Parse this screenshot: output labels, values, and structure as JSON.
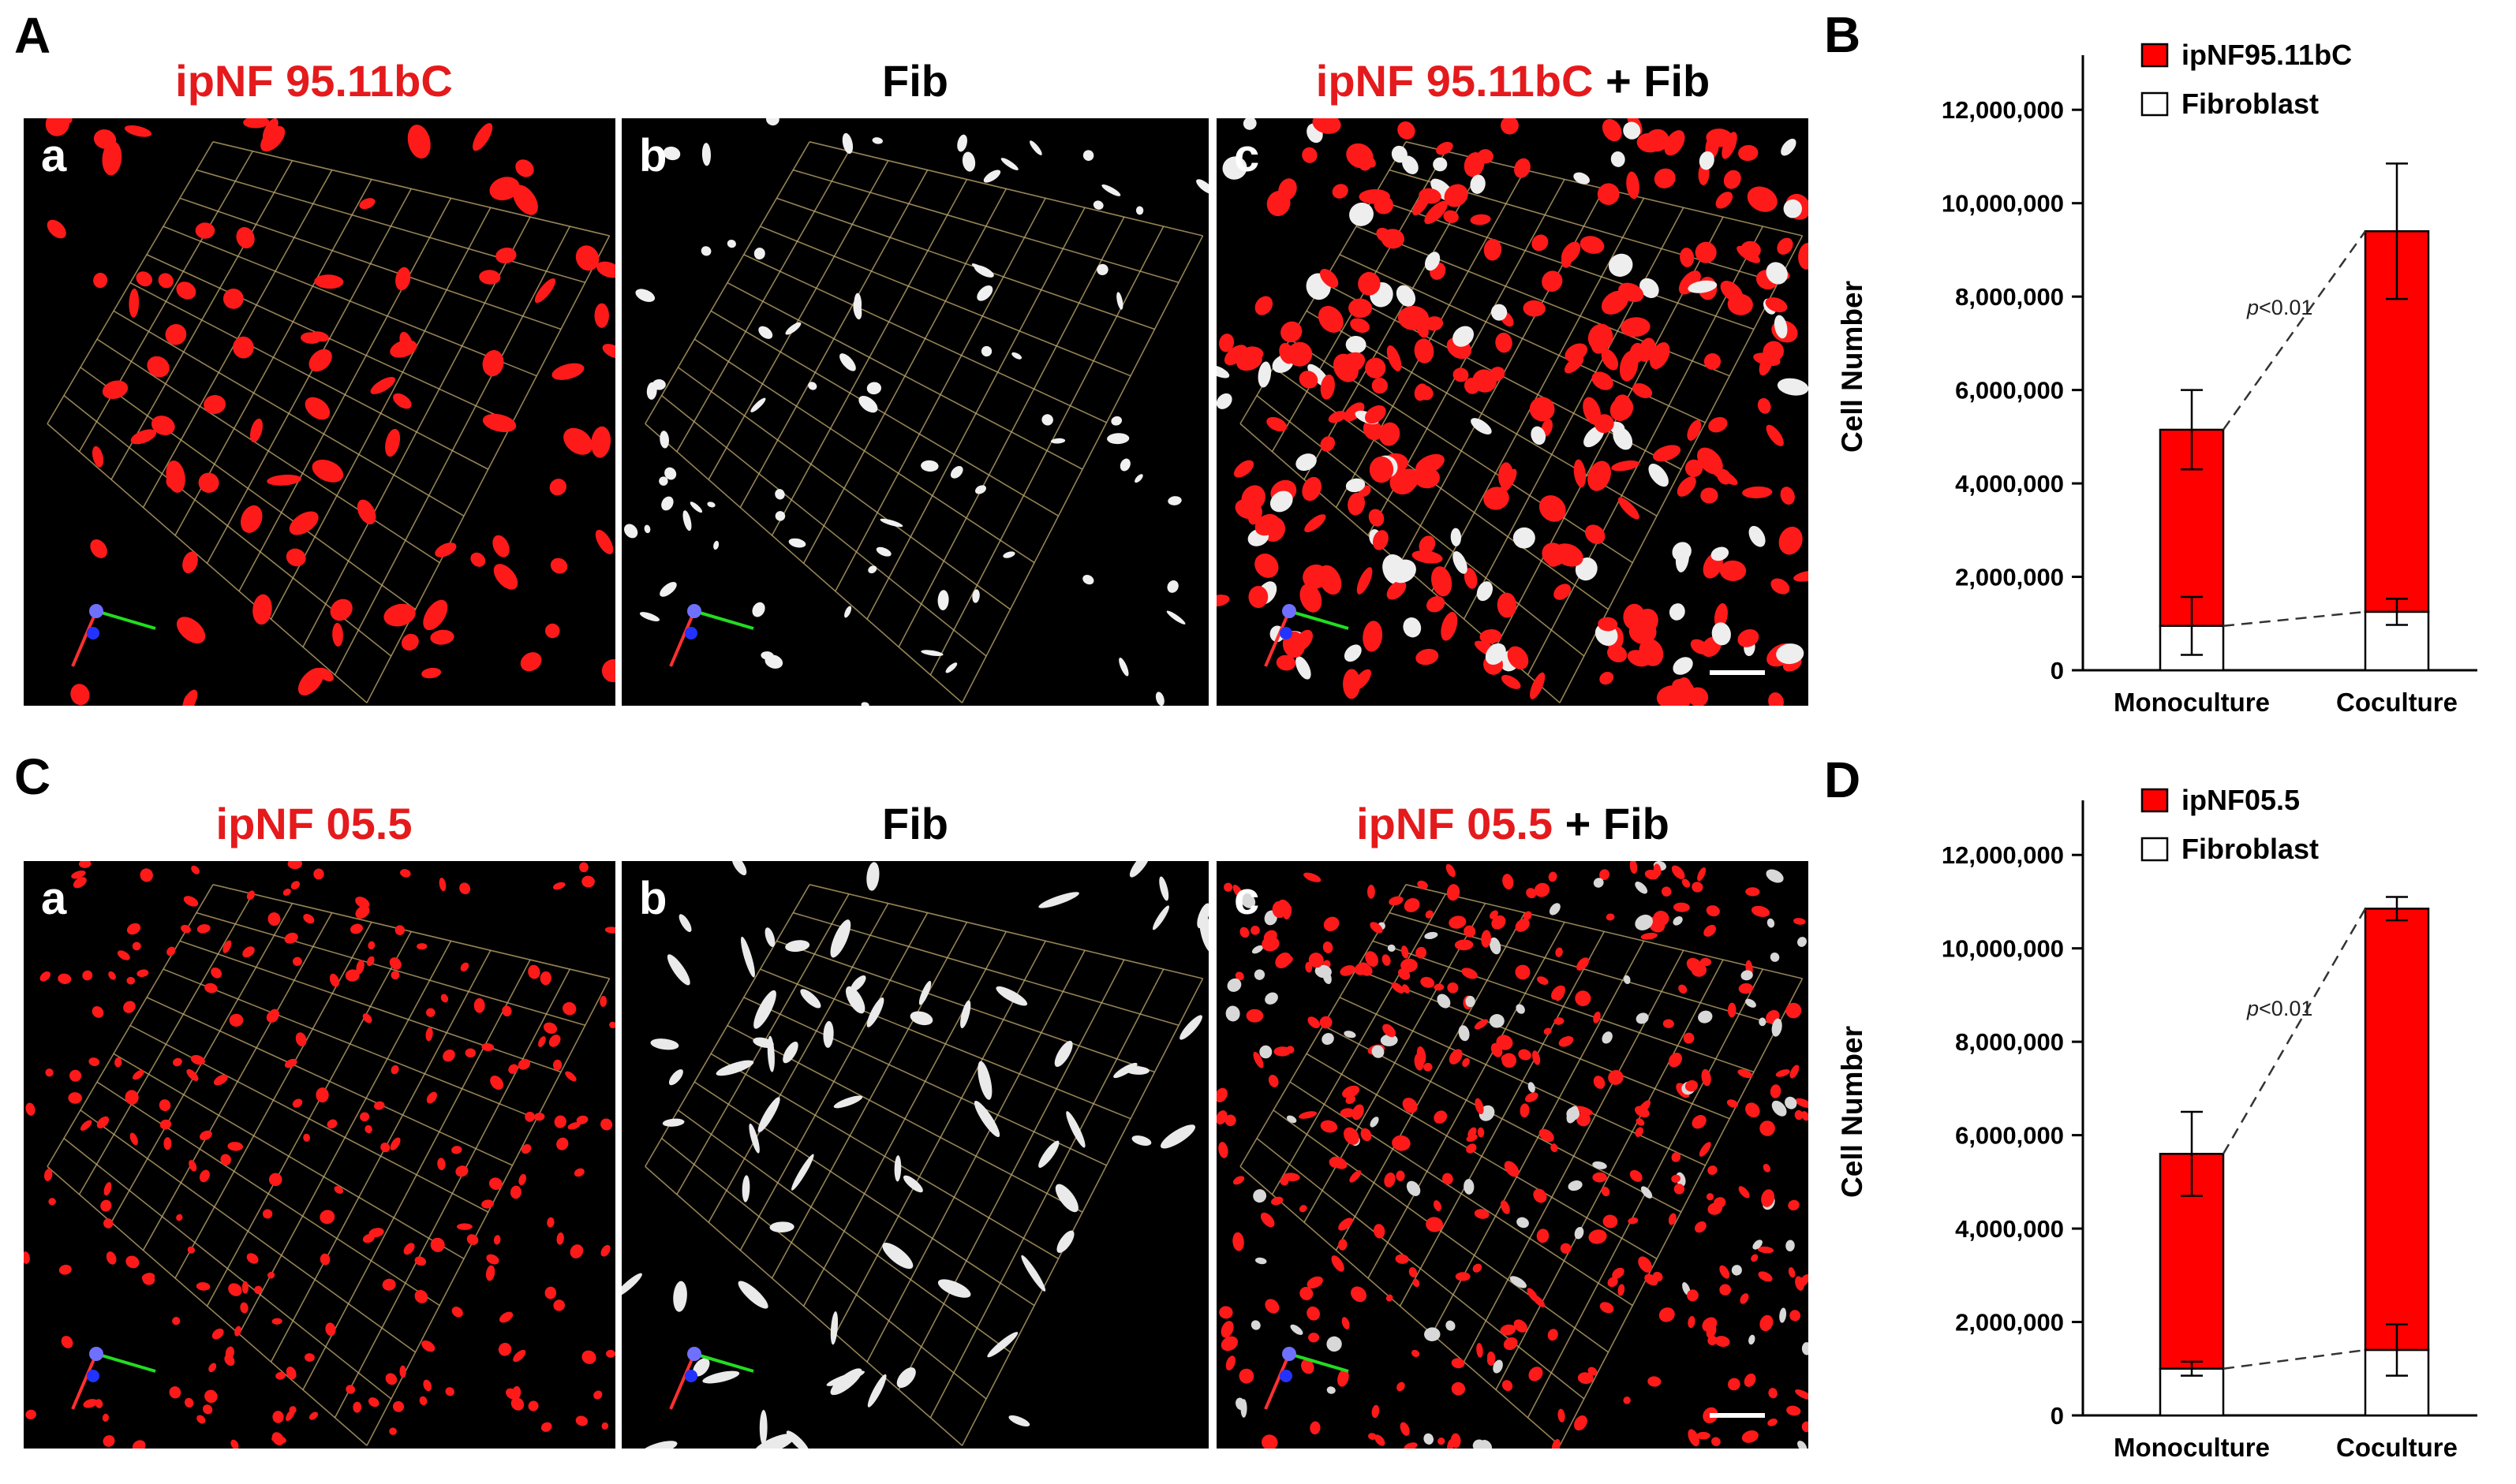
{
  "row_A": {
    "letter": "A",
    "titles": [
      {
        "parts": [
          {
            "text": "ipNF 95.11bC",
            "color": "#e41a1c"
          }
        ]
      },
      {
        "parts": [
          {
            "text": "Fib",
            "color": "#000000"
          }
        ]
      },
      {
        "parts": [
          {
            "text": "ipNF 95.11bC",
            "color": "#e41a1c"
          },
          {
            "text": " + Fib",
            "color": "#000000"
          }
        ]
      }
    ],
    "sublabels": [
      "a",
      "b",
      "c"
    ]
  },
  "row_C": {
    "letter": "C",
    "titles": [
      {
        "parts": [
          {
            "text": "ipNF 05.5",
            "color": "#e41a1c"
          }
        ]
      },
      {
        "parts": [
          {
            "text": "Fib",
            "color": "#000000"
          }
        ]
      },
      {
        "parts": [
          {
            "text": "ipNF 05.5",
            "color": "#e41a1c"
          },
          {
            "text": " + Fib",
            "color": "#000000"
          }
        ]
      }
    ],
    "sublabels": [
      "a",
      "b",
      "c"
    ]
  },
  "chart_data": [
    {
      "panel": "B",
      "type": "bar",
      "stacked": true,
      "categories": [
        "Monoculture",
        "Coculture"
      ],
      "series": [
        {
          "name": "Fibroblast",
          "values": [
            950000,
            1250000
          ],
          "errors": [
            620000,
            280000
          ],
          "color": "#ffffff"
        },
        {
          "name": "ipNF95.11bC",
          "values": [
            4200000,
            8150000
          ],
          "errors": [
            850000,
            1450000
          ],
          "color": "#ff0000"
        }
      ],
      "ylabel": "Cell Number",
      "ylim": [
        0,
        13000000
      ],
      "yticks": [
        0,
        2000000,
        4000000,
        6000000,
        8000000,
        10000000,
        12000000
      ],
      "ytick_labels": [
        "0",
        "2,000,000",
        "4,000,000",
        "6,000,000",
        "8,000,000",
        "10,000,000",
        "12,000,000"
      ],
      "annotation": {
        "prefix": "p",
        "text": "<0.01"
      },
      "legend_order": [
        "ipNF95.11bC",
        "Fibroblast"
      ],
      "legend_placement": "top-left"
    },
    {
      "panel": "D",
      "type": "bar",
      "stacked": true,
      "categories": [
        "Monoculture",
        "Coculture"
      ],
      "series": [
        {
          "name": "Fibroblast",
          "values": [
            1000000,
            1400000
          ],
          "errors": [
            150000,
            550000
          ],
          "color": "#ffffff"
        },
        {
          "name": "ipNF05.5",
          "values": [
            4600000,
            9450000
          ],
          "errors": [
            900000,
            250000
          ],
          "color": "#ff0000"
        }
      ],
      "ylabel": "Cell Number",
      "ylim": [
        0,
        13000000
      ],
      "yticks": [
        0,
        2000000,
        4000000,
        6000000,
        8000000,
        10000000,
        12000000
      ],
      "ytick_labels": [
        "0",
        "2,000,000",
        "4,000,000",
        "6,000,000",
        "8,000,000",
        "10,000,000",
        "12,000,000"
      ],
      "annotation": {
        "prefix": "p",
        "text": "<0.01"
      },
      "legend_order": [
        "ipNF05.5",
        "Fibroblast"
      ],
      "legend_placement": "top-left"
    }
  ]
}
